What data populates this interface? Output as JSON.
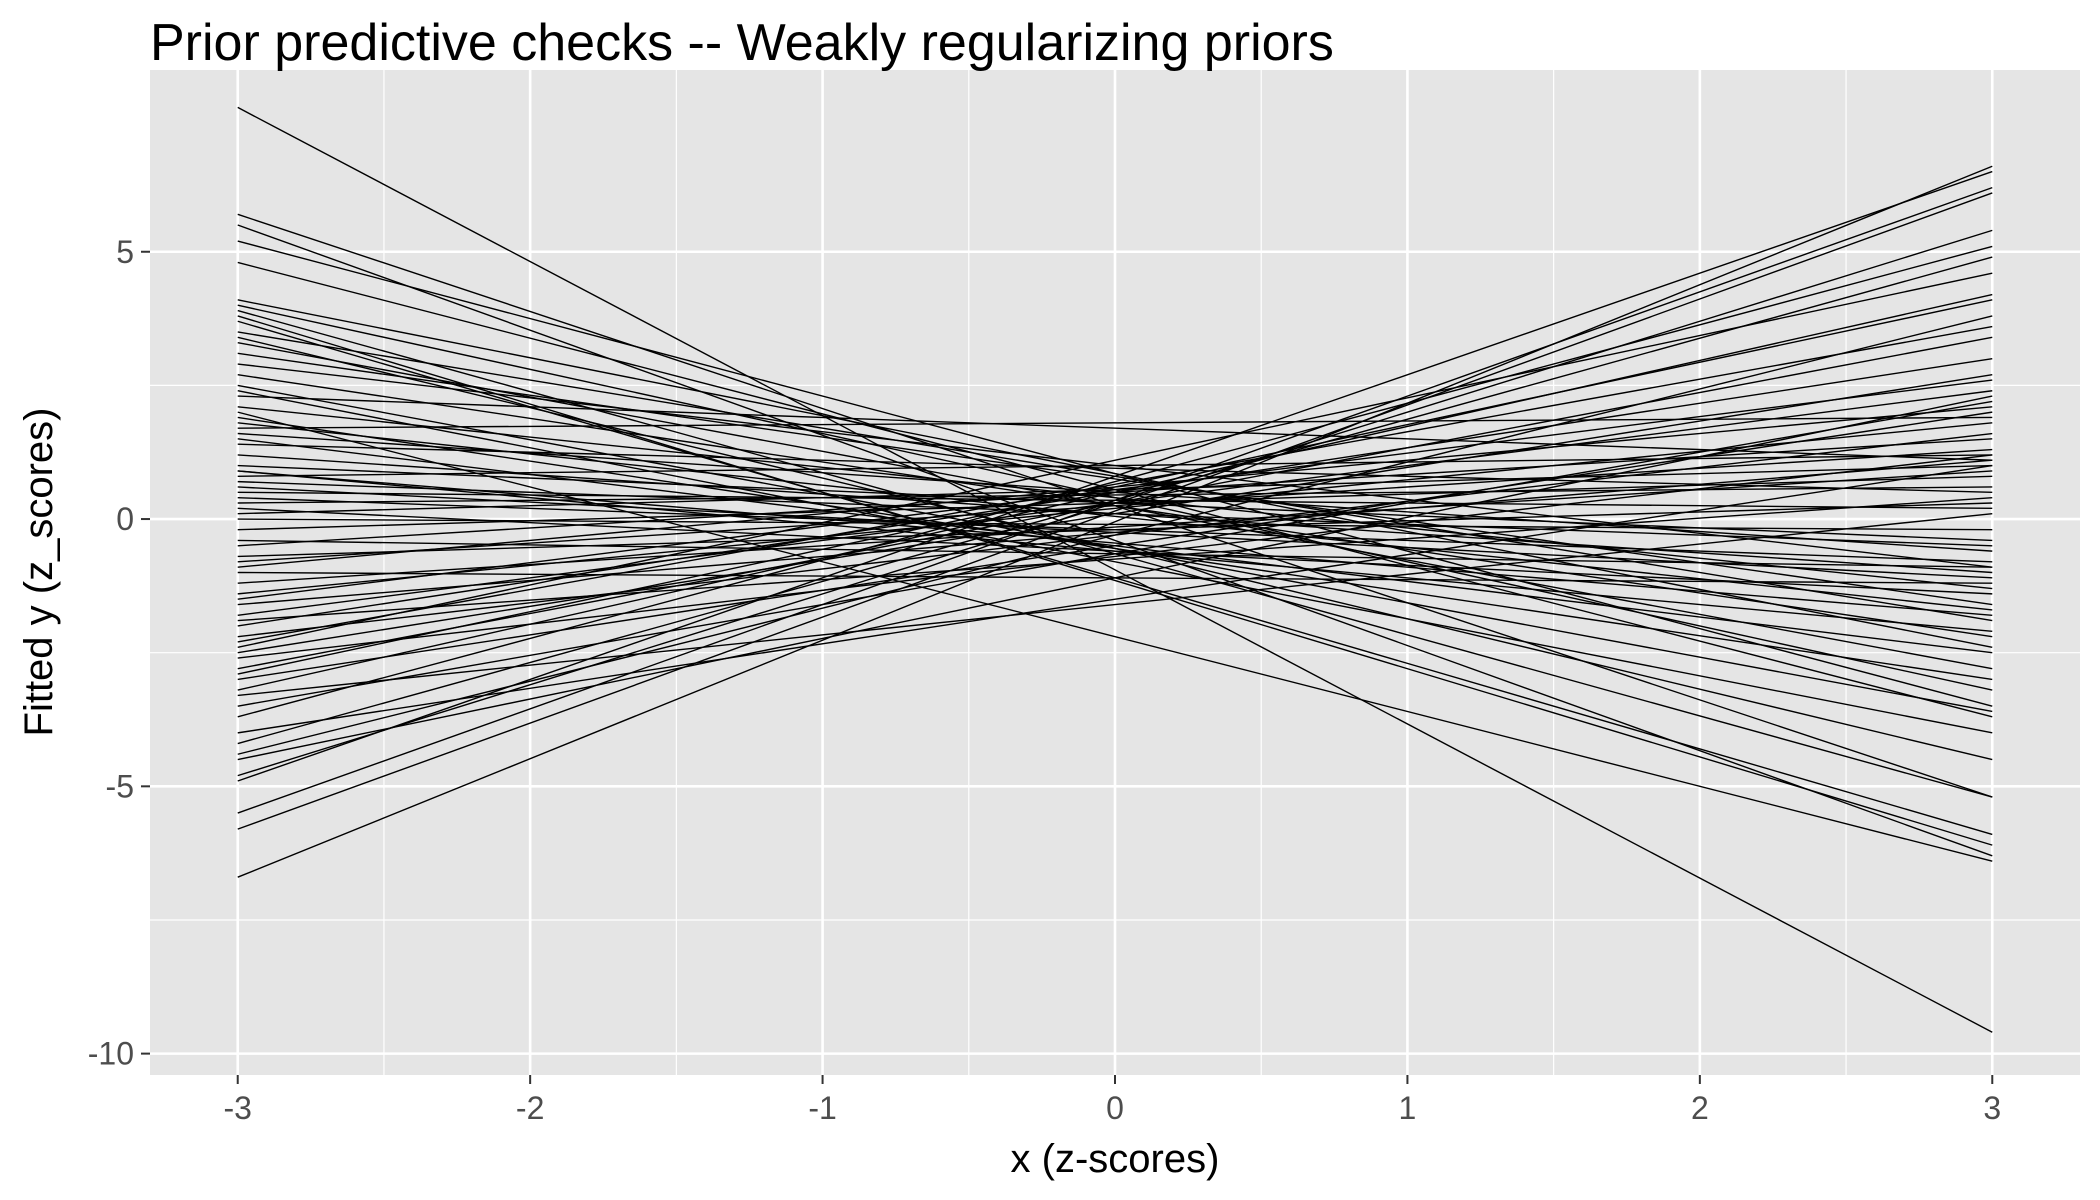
{
  "chart_data": {
    "type": "line",
    "title": "Prior predictive checks -- Weakly regularizing priors",
    "xlabel": "x (z-scores)",
    "ylabel": "Fitted y (z_scores)",
    "xlim": [
      -3.3,
      3.3
    ],
    "ylim": [
      -10.4,
      8.4
    ],
    "x_ticks": [
      -3,
      -2,
      -1,
      0,
      1,
      2,
      3
    ],
    "x_tick_labels": [
      "-3",
      "-2",
      "-1",
      "0",
      "1",
      "2",
      "3"
    ],
    "y_ticks": [
      -10,
      -5,
      0,
      5
    ],
    "y_tick_labels": [
      "-10",
      "-5",
      "0",
      "5"
    ],
    "grid": true,
    "legend": "none",
    "colors": {
      "panel": "#e5e5e5",
      "grid": "#ffffff",
      "line": "#000000",
      "tick_text": "#4d4d4d"
    },
    "series": [
      {
        "values": [
          7.7,
          -9.6
        ]
      },
      {
        "values": [
          -6.7,
          6.6
        ]
      },
      {
        "values": [
          5.7,
          -5.2
        ]
      },
      {
        "values": [
          5.5,
          -6.3
        ]
      },
      {
        "values": [
          5.2,
          -3.5
        ]
      },
      {
        "values": [
          4.8,
          -3.7
        ]
      },
      {
        "values": [
          -5.8,
          6.1
        ]
      },
      {
        "values": [
          -5.5,
          6.2
        ]
      },
      {
        "values": [
          -4.9,
          6.5
        ]
      },
      {
        "values": [
          -4.8,
          5.4
        ]
      },
      {
        "values": [
          4.1,
          -2.4
        ]
      },
      {
        "values": [
          4.0,
          -3.2
        ]
      },
      {
        "values": [
          3.8,
          -6.1
        ]
      },
      {
        "values": [
          3.7,
          -5.9
        ]
      },
      {
        "values": [
          3.5,
          -1.9
        ]
      },
      {
        "values": [
          3.4,
          -4.5
        ]
      },
      {
        "values": [
          3.3,
          -2.8
        ]
      },
      {
        "values": [
          3.1,
          -1.6
        ]
      },
      {
        "values": [
          2.9,
          -0.9
        ]
      },
      {
        "values": [
          2.7,
          -2.2
        ]
      },
      {
        "values": [
          2.5,
          -3.6
        ]
      },
      {
        "values": [
          2.3,
          1.1
        ]
      },
      {
        "values": [
          2.1,
          -1.3
        ]
      },
      {
        "values": [
          2.0,
          -6.4
        ]
      },
      {
        "values": [
          1.8,
          -1.7
        ]
      },
      {
        "values": [
          1.7,
          1.9
        ]
      },
      {
        "values": [
          1.6,
          -0.6
        ]
      },
      {
        "values": [
          1.5,
          -2.5
        ]
      },
      {
        "values": [
          1.4,
          0.5
        ]
      },
      {
        "values": [
          1.2,
          -1.0
        ]
      },
      {
        "values": [
          1.0,
          -0.4
        ]
      },
      {
        "values": [
          0.9,
          -1.8
        ]
      },
      {
        "values": [
          0.8,
          1.2
        ]
      },
      {
        "values": [
          0.7,
          -0.5
        ]
      },
      {
        "values": [
          0.6,
          -1.1
        ]
      },
      {
        "values": [
          0.5,
          0.2
        ]
      },
      {
        "values": [
          0.4,
          -0.8
        ]
      },
      {
        "values": [
          0.3,
          0.6
        ]
      },
      {
        "values": [
          0.2,
          -1.4
        ]
      },
      {
        "values": [
          0.1,
          1.0
        ]
      },
      {
        "values": [
          0.0,
          -0.2
        ]
      },
      {
        "values": [
          -0.2,
          0.8
        ]
      },
      {
        "values": [
          -0.4,
          -0.9
        ]
      },
      {
        "values": [
          -0.5,
          1.5
        ]
      },
      {
        "values": [
          -0.7,
          0.3
        ]
      },
      {
        "values": [
          -0.9,
          2.1
        ]
      },
      {
        "values": [
          -1.0,
          -1.2
        ]
      },
      {
        "values": [
          -1.2,
          0.9
        ]
      },
      {
        "values": [
          -1.4,
          1.8
        ]
      },
      {
        "values": [
          -1.6,
          1.1
        ]
      },
      {
        "values": [
          -1.8,
          2.4
        ]
      },
      {
        "values": [
          -1.9,
          0.4
        ]
      },
      {
        "values": [
          -2.0,
          3.0
        ]
      },
      {
        "values": [
          -2.2,
          1.6
        ]
      },
      {
        "values": [
          -2.4,
          4.6
        ]
      },
      {
        "values": [
          -2.5,
          2.7
        ]
      },
      {
        "values": [
          -2.6,
          1.2
        ]
      },
      {
        "values": [
          -2.8,
          3.4
        ]
      },
      {
        "values": [
          -3.0,
          2.0
        ]
      },
      {
        "values": [
          -3.2,
          4.2
        ]
      },
      {
        "values": [
          -3.3,
          0.1
        ]
      },
      {
        "values": [
          -3.5,
          2.2
        ]
      },
      {
        "values": [
          -3.7,
          5.1
        ]
      },
      {
        "values": [
          -4.0,
          1.0
        ]
      },
      {
        "values": [
          -4.2,
          4.9
        ]
      },
      {
        "values": [
          -4.4,
          3.8
        ]
      },
      {
        "values": [
          -4.5,
          2.3
        ]
      },
      {
        "values": [
          3.9,
          -5.2
        ]
      },
      {
        "values": [
          2.4,
          -4.0
        ]
      },
      {
        "values": [
          1.9,
          -3.0
        ]
      },
      {
        "values": [
          0.9,
          -2.1
        ]
      },
      {
        "values": [
          -2.9,
          4.1
        ]
      },
      {
        "values": [
          -2.3,
          3.6
        ]
      },
      {
        "values": [
          -1.5,
          2.6
        ]
      },
      {
        "values": [
          -0.8,
          1.3
        ]
      }
    ]
  }
}
